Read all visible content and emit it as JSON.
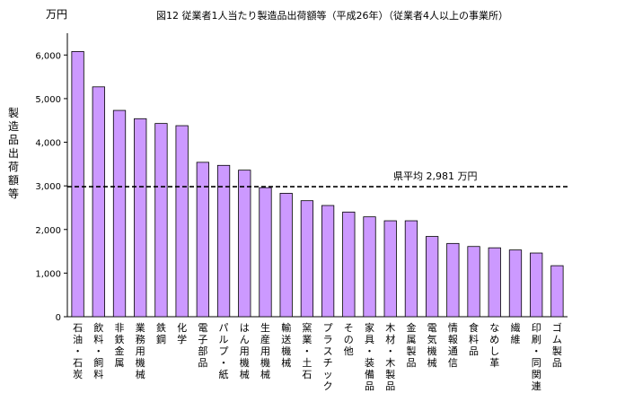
{
  "chart_data": {
    "type": "bar",
    "title": "図12 従業者1人当たり製造品出荷額等（平成26年）（従業者4人以上の事業所）",
    "unit_label": "万円",
    "ylabel": "製造品出荷額等",
    "xlabel": "",
    "ylim": [
      0,
      6500
    ],
    "yticks": [
      0,
      1000,
      2000,
      3000,
      4000,
      5000,
      6000
    ],
    "ytick_labels": [
      "0",
      "1,000",
      "2,000",
      "3,000",
      "4,000",
      "5,000",
      "6,000"
    ],
    "grid": false,
    "legend": "none",
    "categories": [
      "石油・石炭",
      "飲料・飼料",
      "非鉄金属",
      "業務用機械",
      "鉄鋼",
      "化学",
      "電子部品",
      "パルプ・紙",
      "はん用機械",
      "生産用機械",
      "輸送機械",
      "窯業・土石",
      "プラスチック",
      "その他",
      "家具・装備品",
      "木材・木製品",
      "金属製品",
      "電気機械",
      "情報通信",
      "食料品",
      "なめし革",
      "繊維",
      "印刷・同関連",
      "ゴム製品"
    ],
    "values": [
      6080,
      5270,
      4730,
      4540,
      4430,
      4380,
      3540,
      3470,
      3360,
      2960,
      2830,
      2660,
      2550,
      2400,
      2290,
      2200,
      2200,
      1840,
      1680,
      1610,
      1580,
      1530,
      1460,
      1170
    ],
    "reference_line": {
      "value": 2981,
      "label": "県平均 2,981 万円"
    },
    "bar_color": "#cc99ff",
    "bar_stroke": "#000000"
  }
}
